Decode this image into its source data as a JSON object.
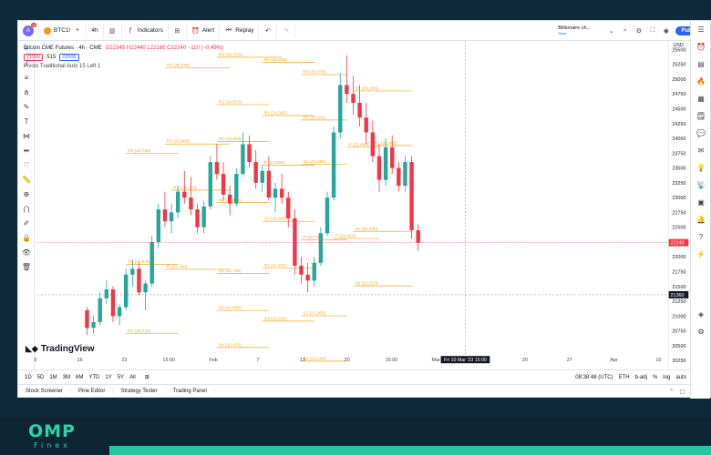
{
  "toolbar": {
    "avatar_letter": "A",
    "avatar_badge": "11",
    "symbol": "BTC1!",
    "interval": "4h",
    "indicators_label": "Indicators",
    "alert_label": "Alert",
    "replay_label": "Replay",
    "template_name": "Billionaire ch...",
    "template_sub": "Save",
    "publish_label": "Publish"
  },
  "legend": {
    "title": "Bitcoin CME Futures · 4h · CME",
    "ohlc": "O22345 H22440 L22160 C22240 −110 (−0.49%)",
    "bid": "21990",
    "spread": "515",
    "ask": "22505",
    "indicator": "Pivots Traditional Auto 15 Left 1"
  },
  "bottom_bar": {
    "ranges": [
      "1D",
      "5D",
      "1M",
      "3M",
      "6M",
      "YTD",
      "1Y",
      "5Y",
      "All"
    ],
    "clock": "08:38:48 (UTC)",
    "session": "ETH",
    "adj": "b-adj",
    "pct": "%",
    "log": "log",
    "auto": "auto"
  },
  "panel_tabs": [
    "Stock Screener",
    "Pine Editor",
    "Strategy Tester",
    "Trading Panel"
  ],
  "watermark": "TradingView",
  "currency": "USD",
  "footer": {
    "brand": "OMP",
    "sub": "Finex"
  },
  "colors": {
    "up": "#26a69a",
    "down": "#f23645",
    "pivot": "#f5a623",
    "accent": "#2962ff",
    "footer_bg": "#0d2534",
    "footer_accent": "#26c6a4"
  },
  "chart_data": {
    "type": "candlestick",
    "price_axis": [
      "25500",
      "25250",
      "25000",
      "24750",
      "24500",
      "24250",
      "24000",
      "23750",
      "23500",
      "23250",
      "23000",
      "22750",
      "22500",
      "22250",
      "22000",
      "21750",
      "21500",
      "21250",
      "21000",
      "20750",
      "20500",
      "20250"
    ],
    "time_axis": [
      "9",
      "16",
      "23",
      "15:00",
      "Feb",
      "7",
      "13",
      "20",
      "15:00",
      "Mar",
      "7",
      "20",
      "27",
      "Apr",
      "10"
    ],
    "crosshair_time": "Fri 10 Mar '23  15:00",
    "last_price": "22240",
    "crosshair_price": "21360",
    "ylim": [
      20250,
      25600
    ],
    "candles": [
      [
        21100,
        21150,
        20680,
        20800
      ],
      [
        20800,
        21000,
        20700,
        20900
      ],
      [
        20900,
        21400,
        20850,
        21300
      ],
      [
        21300,
        21600,
        21200,
        21450
      ],
      [
        21450,
        21500,
        20900,
        21000
      ],
      [
        21000,
        21200,
        20850,
        21150
      ],
      [
        21150,
        21800,
        21100,
        21700
      ],
      [
        21700,
        21950,
        21500,
        21800
      ],
      [
        21800,
        21900,
        21350,
        21400
      ],
      [
        21400,
        21600,
        21100,
        21550
      ],
      [
        21550,
        22350,
        21500,
        22250
      ],
      [
        22250,
        22900,
        22150,
        22800
      ],
      [
        22800,
        23100,
        22500,
        22600
      ],
      [
        22600,
        22900,
        22400,
        22750
      ],
      [
        22750,
        23200,
        22650,
        23100
      ],
      [
        23100,
        23450,
        22900,
        23000
      ],
      [
        23000,
        23350,
        22700,
        22800
      ],
      [
        22800,
        22900,
        22400,
        22500
      ],
      [
        22500,
        22950,
        22400,
        22850
      ],
      [
        22850,
        23700,
        22800,
        23600
      ],
      [
        23600,
        23900,
        23300,
        23400
      ],
      [
        23400,
        23600,
        22950,
        23050
      ],
      [
        23050,
        23200,
        22700,
        22900
      ],
      [
        22900,
        23500,
        22850,
        23400
      ],
      [
        23400,
        24100,
        23350,
        23900
      ],
      [
        23900,
        24050,
        23500,
        23600
      ],
      [
        23600,
        23800,
        23150,
        23250
      ],
      [
        23250,
        23550,
        23100,
        23450
      ],
      [
        23450,
        23700,
        22950,
        23000
      ],
      [
        23000,
        23250,
        22750,
        23150
      ],
      [
        23150,
        23400,
        22900,
        23000
      ],
      [
        23000,
        23100,
        22500,
        22650
      ],
      [
        22650,
        22800,
        21700,
        21850
      ],
      [
        21850,
        22000,
        21550,
        21700
      ],
      [
        21700,
        21900,
        21400,
        21600
      ],
      [
        21600,
        22000,
        21500,
        21900
      ],
      [
        21900,
        22500,
        21850,
        22400
      ],
      [
        22400,
        23100,
        22350,
        23000
      ],
      [
        23000,
        24200,
        22950,
        24100
      ],
      [
        24100,
        25100,
        24000,
        24900
      ],
      [
        24900,
        25400,
        24600,
        24750
      ],
      [
        24750,
        25050,
        24400,
        24600
      ],
      [
        24600,
        24900,
        24200,
        24350
      ],
      [
        24350,
        24600,
        23900,
        24100
      ],
      [
        24100,
        24300,
        23600,
        23700
      ],
      [
        23700,
        23900,
        23100,
        23300
      ],
      [
        23300,
        24000,
        23200,
        23850
      ],
      [
        23850,
        24050,
        23400,
        23500
      ],
      [
        23500,
        23600,
        23100,
        23200
      ],
      [
        23200,
        23700,
        23100,
        23600
      ],
      [
        23600,
        23700,
        22300,
        22450
      ],
      [
        22450,
        22550,
        22100,
        22240
      ]
    ],
    "pivot_labels": [
      "R2 (25,370)",
      "R2 (25,285)",
      "R3 (25,190)",
      "R3 (25,075)",
      "R2 (24,570)",
      "R1 (24,800)",
      "R1 (24,385)",
      "R2 (24,310)",
      "R1 (23,945)",
      "R2 (23,905)",
      "P (23,850)",
      "S1 (23,880)",
      "R3 (23,750)",
      "P (23,550)",
      "R1 (23,125)",
      "S1 (23,560)",
      "S2 (22,920)",
      "S1 (22,600)",
      "S1 (22,430)",
      "P (22,285)",
      "P (22,310)",
      "R2 (21,875)",
      "R (21,790)",
      "S2 (21,720)",
      "S2 (21,815)",
      "S2 (21,510)",
      "S2 (21,095)",
      "S1 (21,005)",
      "R1 (20,710)",
      "S3 (20,915)",
      "S4 (20,470)",
      "S2 (20,240)"
    ],
    "pivots": [
      {
        "v": 25370,
        "s": 20,
        "e": 30
      },
      {
        "v": 25285,
        "s": 27,
        "e": 35
      },
      {
        "v": 25190,
        "s": 12,
        "e": 22
      },
      {
        "v": 25075,
        "s": 33,
        "e": 40
      },
      {
        "v": 24570,
        "s": 20,
        "e": 28
      },
      {
        "v": 24800,
        "s": 41,
        "e": 50
      },
      {
        "v": 24385,
        "s": 27,
        "e": 35
      },
      {
        "v": 24310,
        "s": 33,
        "e": 40
      },
      {
        "v": 23945,
        "s": 20,
        "e": 28
      },
      {
        "v": 23905,
        "s": 12,
        "e": 22
      },
      {
        "v": 23850,
        "s": 40,
        "e": 45
      },
      {
        "v": 23880,
        "s": 44,
        "e": 50
      },
      {
        "v": 23750,
        "s": 6,
        "e": 14
      },
      {
        "v": 23550,
        "s": 27,
        "e": 35
      },
      {
        "v": 23125,
        "s": 13,
        "e": 22
      },
      {
        "v": 23560,
        "s": 33,
        "e": 40
      },
      {
        "v": 22920,
        "s": 20,
        "e": 28
      },
      {
        "v": 22600,
        "s": 27,
        "e": 35
      },
      {
        "v": 22430,
        "s": 41,
        "e": 50
      },
      {
        "v": 22285,
        "s": 33,
        "e": 40
      },
      {
        "v": 22310,
        "s": 38,
        "e": 45
      },
      {
        "v": 21875,
        "s": 6,
        "e": 14
      },
      {
        "v": 21790,
        "s": 12,
        "e": 22
      },
      {
        "v": 21720,
        "s": 20,
        "e": 28
      },
      {
        "v": 21815,
        "s": 27,
        "e": 35
      },
      {
        "v": 21510,
        "s": 41,
        "e": 50
      },
      {
        "v": 21095,
        "s": 20,
        "e": 28
      },
      {
        "v": 21005,
        "s": 33,
        "e": 40
      },
      {
        "v": 20710,
        "s": 6,
        "e": 14
      },
      {
        "v": 20915,
        "s": 27,
        "e": 35
      },
      {
        "v": 20470,
        "s": 20,
        "e": 28
      },
      {
        "v": 20240,
        "s": 33,
        "e": 40
      }
    ]
  }
}
